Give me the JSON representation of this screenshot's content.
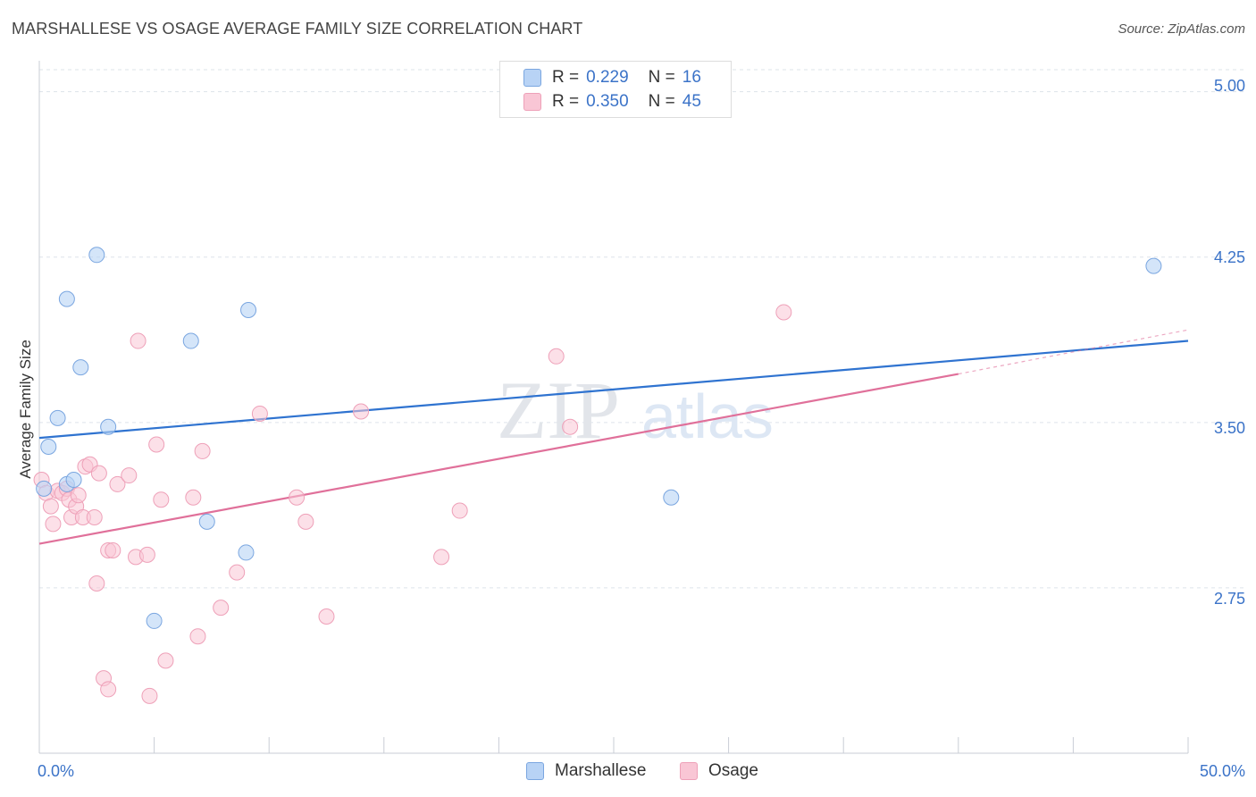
{
  "title": "MARSHALLESE VS OSAGE AVERAGE FAMILY SIZE CORRELATION CHART",
  "source": "Source: ZipAtlas.com",
  "watermark": {
    "zip": "ZIP",
    "atlas": "atlas"
  },
  "legend": {
    "rows": [
      {
        "r_label": "R =",
        "r_value": "0.229",
        "n_label": "N =",
        "n_value": "16"
      },
      {
        "r_label": "R =",
        "r_value": "0.350",
        "n_label": "N =",
        "n_value": "45"
      }
    ]
  },
  "bottom_legend": [
    "Marshallese",
    "Osage"
  ],
  "colors": {
    "marshallese_fill": "#b8d3f5",
    "marshallese_stroke": "#7aa6e0",
    "marshallese_line": "#2f73d0",
    "osage_fill": "#f9c6d5",
    "osage_stroke": "#eea0b8",
    "osage_line": "#e0709a",
    "axis_text": "#3b73c8",
    "grid": "#dde3ea"
  },
  "chart_data": {
    "type": "scatter",
    "title": "MARSHALLESE VS OSAGE AVERAGE FAMILY SIZE CORRELATION CHART",
    "xlabel": "",
    "ylabel": "Average Family Size",
    "xlim": [
      0,
      50
    ],
    "ylim": [
      2.0,
      5.1
    ],
    "x_tick_labels": [
      "0.0%",
      "50.0%"
    ],
    "y_ticks": [
      2.75,
      3.5,
      4.25,
      5.0
    ],
    "y_tick_labels": [
      "2.75",
      "3.50",
      "4.25",
      "5.00"
    ],
    "grid": true,
    "legend_position": "top-center",
    "series": [
      {
        "name": "Marshallese",
        "r": 0.229,
        "n": 16,
        "points": [
          [
            0.2,
            3.2
          ],
          [
            0.4,
            3.39
          ],
          [
            0.8,
            3.52
          ],
          [
            1.2,
            3.22
          ],
          [
            1.5,
            3.24
          ],
          [
            1.2,
            4.06
          ],
          [
            1.8,
            3.75
          ],
          [
            2.5,
            4.26
          ],
          [
            3.0,
            3.48
          ],
          [
            5.0,
            2.6
          ],
          [
            6.6,
            3.87
          ],
          [
            7.3,
            3.05
          ],
          [
            9.0,
            2.91
          ],
          [
            9.1,
            4.01
          ],
          [
            27.5,
            3.16
          ],
          [
            48.5,
            4.21
          ]
        ],
        "trend": {
          "x": [
            0,
            50
          ],
          "y": [
            3.43,
            3.87
          ]
        }
      },
      {
        "name": "Osage",
        "r": 0.35,
        "n": 45,
        "points": [
          [
            0.1,
            3.24
          ],
          [
            0.3,
            3.18
          ],
          [
            0.5,
            3.12
          ],
          [
            0.6,
            3.04
          ],
          [
            0.8,
            3.19
          ],
          [
            1.0,
            3.18
          ],
          [
            1.2,
            3.2
          ],
          [
            1.3,
            3.15
          ],
          [
            1.4,
            3.07
          ],
          [
            1.6,
            3.12
          ],
          [
            1.7,
            3.17
          ],
          [
            1.9,
            3.07
          ],
          [
            2.0,
            3.3
          ],
          [
            2.2,
            3.31
          ],
          [
            2.4,
            3.07
          ],
          [
            2.6,
            3.27
          ],
          [
            2.5,
            2.77
          ],
          [
            3.0,
            2.92
          ],
          [
            3.2,
            2.92
          ],
          [
            2.8,
            2.34
          ],
          [
            3.0,
            2.29
          ],
          [
            3.4,
            3.22
          ],
          [
            3.9,
            3.26
          ],
          [
            4.2,
            2.89
          ],
          [
            4.3,
            3.87
          ],
          [
            4.7,
            2.9
          ],
          [
            4.8,
            2.26
          ],
          [
            5.1,
            3.4
          ],
          [
            5.3,
            3.15
          ],
          [
            5.5,
            2.42
          ],
          [
            6.7,
            3.16
          ],
          [
            6.9,
            2.53
          ],
          [
            7.1,
            3.37
          ],
          [
            7.9,
            2.66
          ],
          [
            8.6,
            2.82
          ],
          [
            9.6,
            3.54
          ],
          [
            11.2,
            3.16
          ],
          [
            11.6,
            3.05
          ],
          [
            12.5,
            2.62
          ],
          [
            14.0,
            3.55
          ],
          [
            17.5,
            2.89
          ],
          [
            18.3,
            3.1
          ],
          [
            22.5,
            3.8
          ],
          [
            23.1,
            3.48
          ],
          [
            32.4,
            4.0
          ]
        ],
        "trend": {
          "x": [
            0,
            40
          ],
          "y": [
            2.95,
            3.72
          ]
        },
        "trend_extension": {
          "x": [
            40,
            50
          ],
          "y": [
            3.72,
            3.92
          ]
        }
      }
    ]
  }
}
